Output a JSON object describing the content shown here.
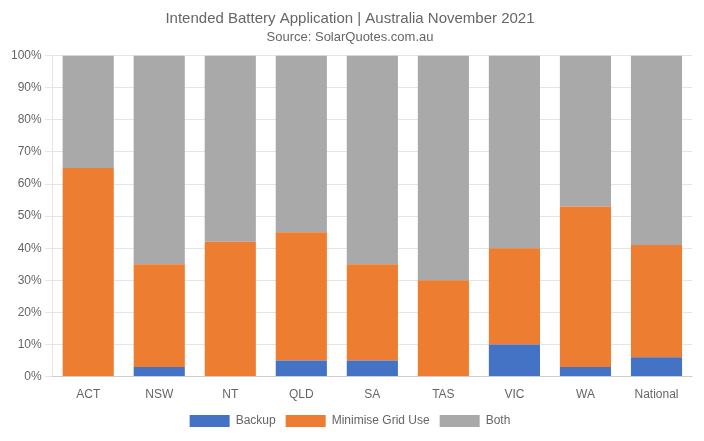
{
  "chart_data": {
    "type": "bar",
    "title": "Intended Battery Application | Australia November 2021",
    "subtitle": "Source: SolarQuotes.com.au",
    "categories": [
      "ACT",
      "NSW",
      "NT",
      "QLD",
      "SA",
      "TAS",
      "VIC",
      "WA",
      "National"
    ],
    "series": [
      {
        "name": "Backup",
        "color": "#4472C4",
        "values": [
          0,
          3,
          0,
          5,
          5,
          0,
          10,
          3,
          6
        ]
      },
      {
        "name": "Minimise Grid Use",
        "color": "#ED7D31",
        "values": [
          65,
          32,
          42,
          40,
          30,
          30,
          30,
          50,
          35
        ]
      },
      {
        "name": "Both",
        "color": "#A9A9A9",
        "values": [
          35,
          65,
          58,
          55,
          65,
          70,
          60,
          47,
          59
        ]
      }
    ],
    "ylim": [
      0,
      100
    ],
    "yticks": [
      {
        "value": 0,
        "label": "0%"
      },
      {
        "value": 10,
        "label": "10%"
      },
      {
        "value": 20,
        "label": "20%"
      },
      {
        "value": 30,
        "label": "30%"
      },
      {
        "value": 40,
        "label": "40%"
      },
      {
        "value": 50,
        "label": "50%"
      },
      {
        "value": 60,
        "label": "60%"
      },
      {
        "value": 70,
        "label": "70%"
      },
      {
        "value": 80,
        "label": "80%"
      },
      {
        "value": 90,
        "label": "90%"
      },
      {
        "value": 100,
        "label": "100%"
      }
    ],
    "stacked": true,
    "grid": true,
    "legend": "bottom"
  }
}
